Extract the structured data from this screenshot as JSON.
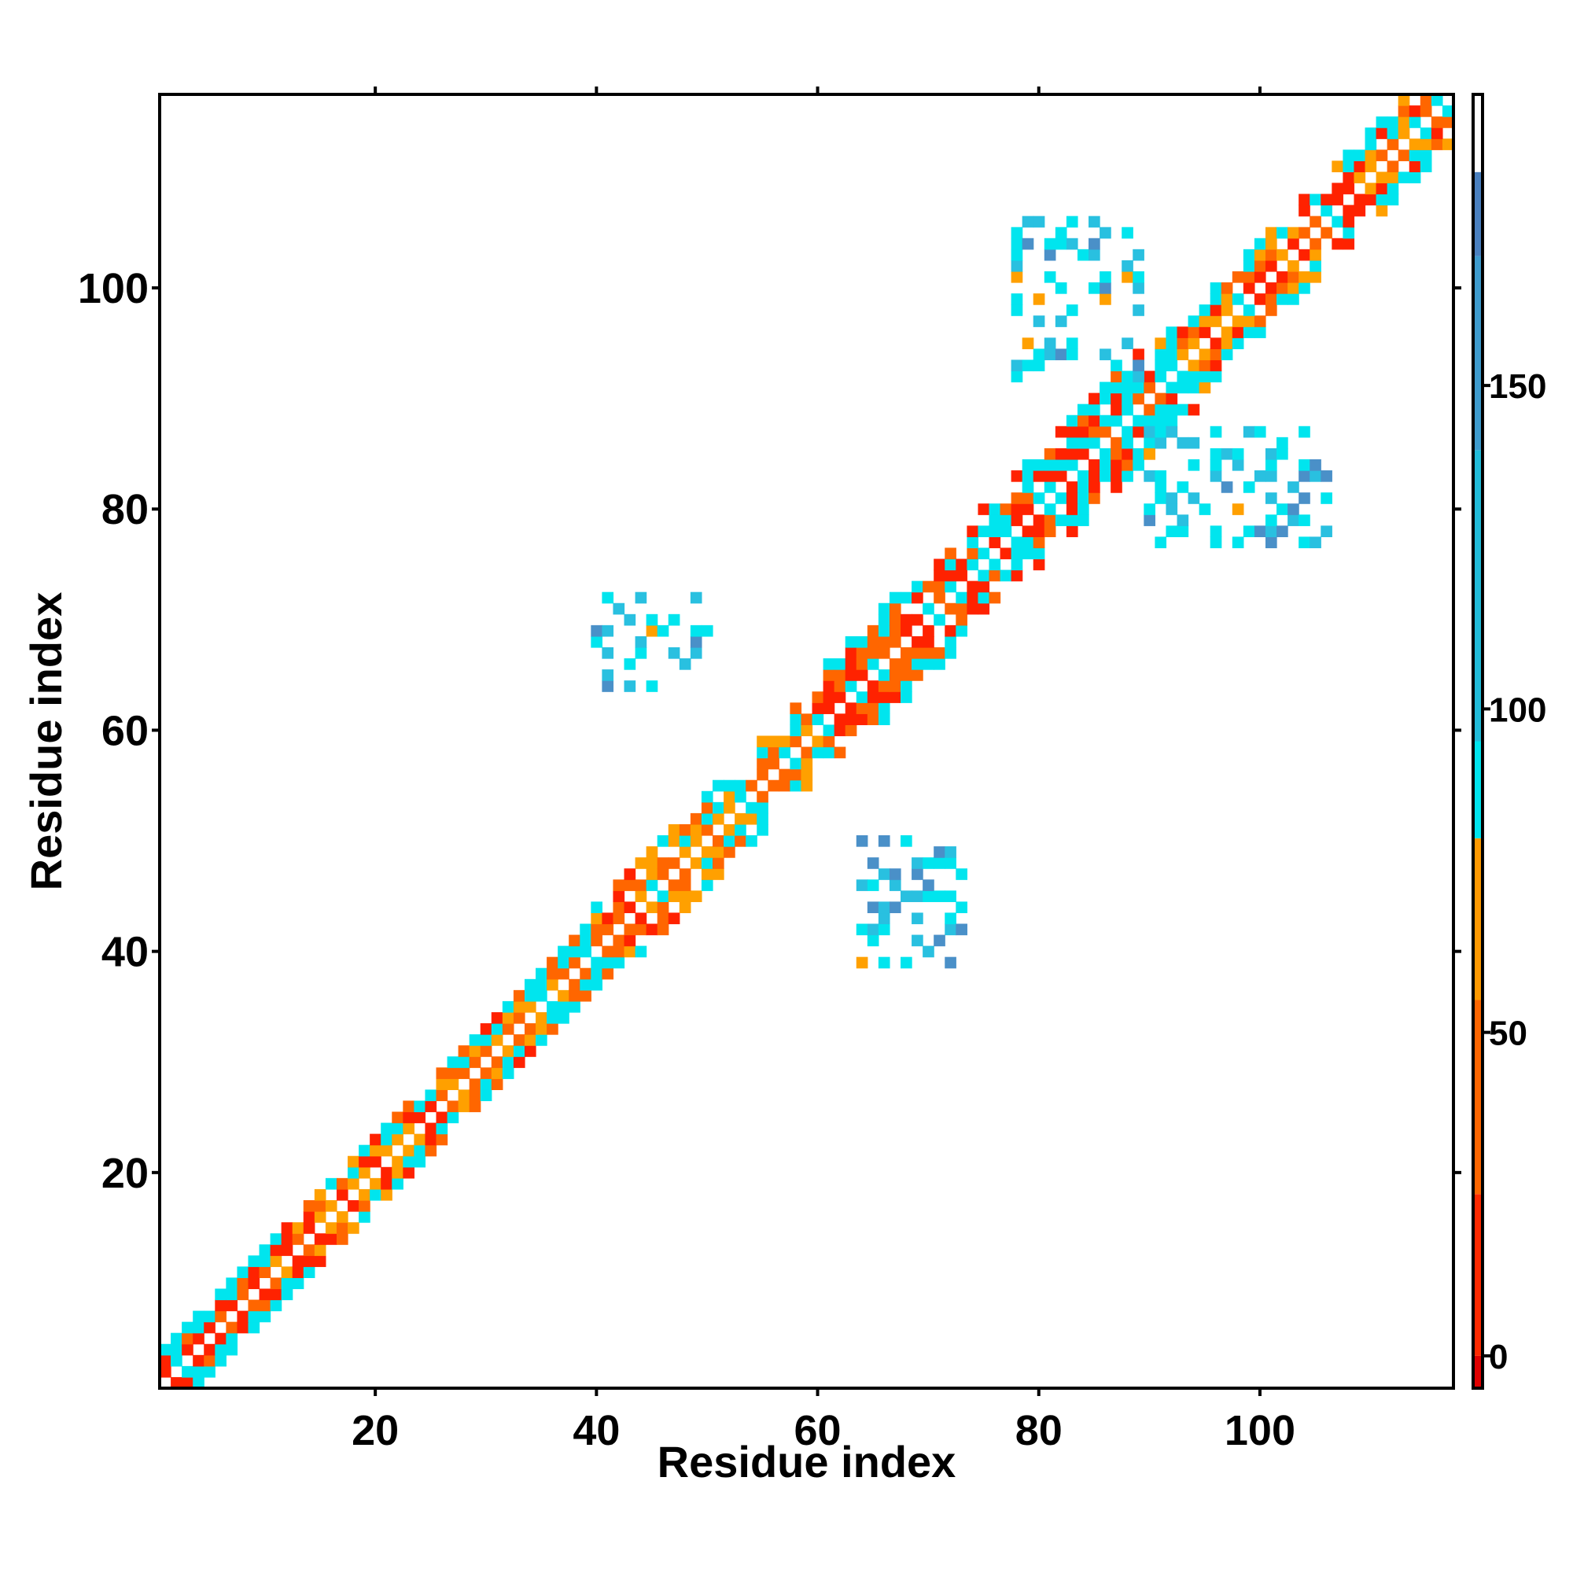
{
  "chart_data": {
    "type": "heatmap",
    "title": "",
    "xlabel": "Residue index",
    "ylabel": "Residue index",
    "xlim": [
      0.5,
      117.5
    ],
    "ylim": [
      0.5,
      117.5
    ],
    "x_ticks": [
      20,
      40,
      60,
      80,
      100
    ],
    "y_ticks": [
      20,
      40,
      60,
      80,
      100
    ],
    "colorbar": {
      "range": [
        -5,
        195
      ],
      "ticks": [
        0,
        50,
        100,
        150
      ],
      "bands": [
        {
          "from": -5,
          "to": 0,
          "color": "#e00000"
        },
        {
          "from": 0,
          "to": 25,
          "color": "#ff2a00"
        },
        {
          "from": 25,
          "to": 55,
          "color": "#ff6600"
        },
        {
          "from": 55,
          "to": 80,
          "color": "#ff9900"
        },
        {
          "from": 80,
          "to": 95,
          "color": "#00e5ee"
        },
        {
          "from": 95,
          "to": 140,
          "color": "#22bcd9"
        },
        {
          "from": 140,
          "to": 170,
          "color": "#3e9bcd"
        },
        {
          "from": 170,
          "to": 183,
          "color": "#4a80bf"
        },
        {
          "from": 183,
          "to": 195,
          "color": "#ffffff"
        }
      ]
    },
    "colors": {
      "red": "#ff2200",
      "orange": "#ff6600",
      "amber": "#ffa000",
      "cyan": "#00e5ee",
      "lightblue": "#29c0e0",
      "steelblue": "#4a90c8"
    },
    "diagonal_segments": [
      {
        "from": 1,
        "to": 10,
        "palette": [
          "orange",
          "red",
          "cyan"
        ]
      },
      {
        "from": 10,
        "to": 33,
        "palette": [
          "orange",
          "red",
          "amber"
        ]
      },
      {
        "from": 33,
        "to": 41,
        "palette": [
          "orange",
          "amber",
          "cyan"
        ]
      },
      {
        "from": 41,
        "to": 44,
        "palette": [
          "red",
          "orange"
        ]
      },
      {
        "from": 44,
        "to": 60,
        "palette": [
          "orange",
          "cyan",
          "amber"
        ]
      },
      {
        "from": 60,
        "to": 90,
        "palette": [
          "orange",
          "red",
          "cyan"
        ]
      },
      {
        "from": 90,
        "to": 117,
        "palette": [
          "orange",
          "red",
          "amber",
          "cyan"
        ]
      }
    ],
    "off_diagonal_clusters": [
      {
        "x": [
          40,
          50
        ],
        "y": [
          64,
          72
        ],
        "density": 0.33
      },
      {
        "x": [
          64,
          73
        ],
        "y": [
          39,
          50
        ],
        "density": 0.33
      },
      {
        "x": [
          78,
          89
        ],
        "y": [
          92,
          106
        ],
        "density": 0.32
      },
      {
        "x": [
          90,
          106
        ],
        "y": [
          77,
          87
        ],
        "density": 0.32
      }
    ]
  }
}
